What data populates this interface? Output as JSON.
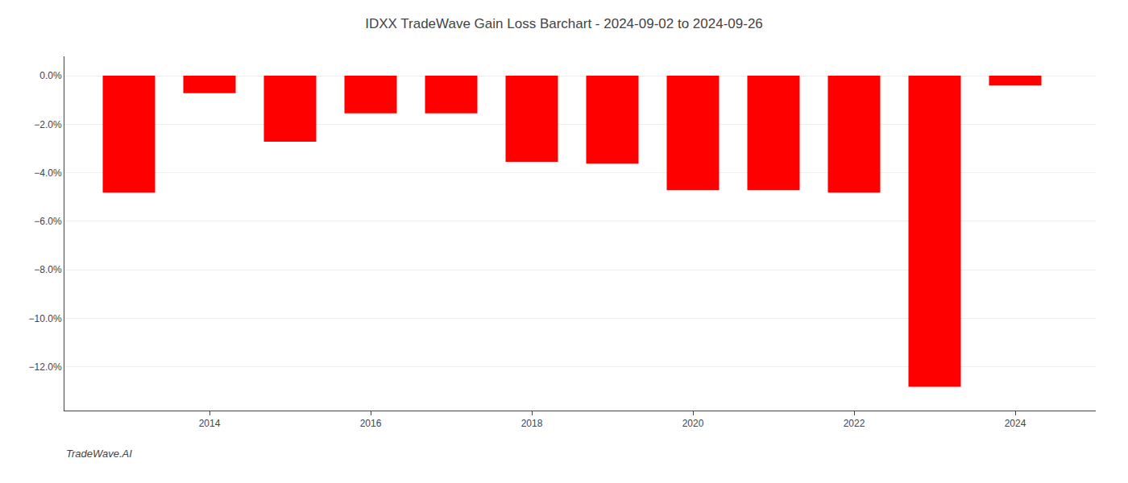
{
  "chart_data": {
    "type": "bar",
    "title": "IDXX TradeWave Gain Loss Barchart - 2024-09-02 to 2024-09-26",
    "annotations": [
      {
        "text": "TradeWave.AI"
      }
    ],
    "x": [
      2013,
      2014,
      2015,
      2016,
      2017,
      2018,
      2019,
      2020,
      2021,
      2022,
      2023,
      2024
    ],
    "values": [
      -4.82,
      -0.72,
      -2.72,
      -1.55,
      -1.55,
      -3.55,
      -3.62,
      -4.72,
      -4.72,
      -4.82,
      -12.82,
      -0.4
    ],
    "color": "#ff0000",
    "xlim": [
      2012.2,
      2025.0
    ],
    "xticks": [
      2014,
      2016,
      2018,
      2020,
      2022,
      2024
    ],
    "ylim": [
      -13.8,
      0.8
    ],
    "yticks": [
      {
        "value": 0.0,
        "label": "0.0%"
      },
      {
        "value": -2.0,
        "label": "−2.0%"
      },
      {
        "value": -4.0,
        "label": "−4.0%"
      },
      {
        "value": -6.0,
        "label": "−6.0%"
      },
      {
        "value": -8.0,
        "label": "−8.0%"
      },
      {
        "value": -10.0,
        "label": "−10.0%"
      },
      {
        "value": -12.0,
        "label": "−12.0%"
      }
    ],
    "grid": true
  }
}
